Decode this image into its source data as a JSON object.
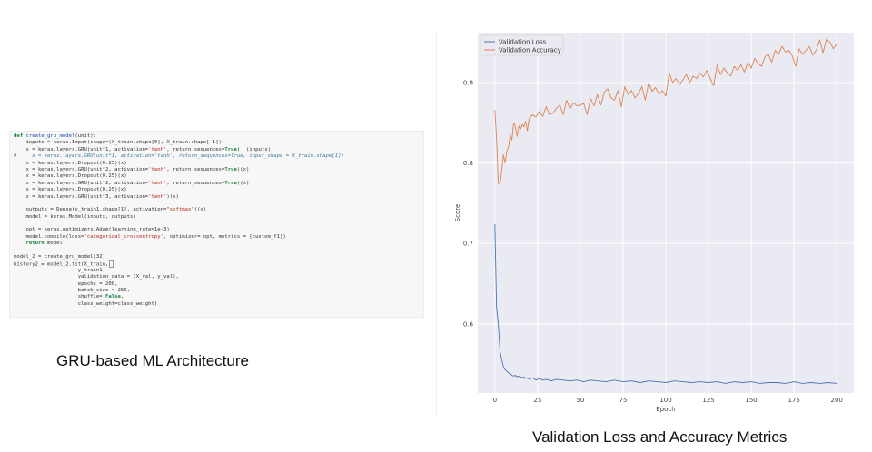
{
  "code_lines": [
    [
      [
        "kw",
        "def "
      ],
      [
        "fn",
        "create_gru_model"
      ],
      [
        "",
        "(unit):"
      ]
    ],
    [
      [
        "",
        "    inputs = keras.Input(shape=(X_train.shape[0], X_train.shape[-1]))"
      ]
    ],
    [
      [
        "",
        "    x = keras.layers.GRU(unit*1, activation="
      ],
      [
        "str",
        "'tanh'"
      ],
      [
        "",
        ", return_sequences="
      ],
      [
        "kw",
        "True"
      ],
      [
        "",
        ")  (inputs)"
      ]
    ],
    [
      [
        "cm",
        "#     x = keras.layers.GRU(unit*1, activation='tanh', return_sequences=True, input_shape = X_train.shape[1])"
      ]
    ],
    [
      [
        "",
        "    x = keras.layers.Dropout(0.25)(x)"
      ]
    ],
    [
      [
        "",
        "    x = keras.layers.GRU(unit*2, activation="
      ],
      [
        "str",
        "'tanh'"
      ],
      [
        "",
        ", return_sequences="
      ],
      [
        "kw",
        "True"
      ],
      [
        "",
        ")(x)"
      ]
    ],
    [
      [
        "",
        "    x = keras.layers.Dropout(0.25)(x)"
      ]
    ],
    [
      [
        "",
        "    x = keras.layers.GRU(unit*2, activation="
      ],
      [
        "str",
        "'tanh'"
      ],
      [
        "",
        ", return_sequences="
      ],
      [
        "kw",
        "True"
      ],
      [
        "",
        ")(x)"
      ]
    ],
    [
      [
        "",
        "    x = keras.layers.Dropout(0.25)(x)"
      ]
    ],
    [
      [
        "",
        "    x = keras.layers.GRU(unit*3, activation="
      ],
      [
        "str",
        "'tanh'"
      ],
      [
        "",
        ")(x)"
      ]
    ],
    [
      [
        "",
        ""
      ]
    ],
    [
      [
        "",
        "    outputs = Dense(y_train1.shape[1], activation="
      ],
      [
        "str",
        "\"softmax\""
      ],
      [
        "",
        ")(x)"
      ]
    ],
    [
      [
        "",
        "    model = keras.Model(inputs, outputs)"
      ]
    ],
    [
      [
        "",
        ""
      ]
    ],
    [
      [
        "",
        "    opt = keras.optimizers.Adam(learning_rate=1e-3)"
      ]
    ],
    [
      [
        "",
        "    model.compile(loss="
      ],
      [
        "str",
        "'categorical_crossentropy'"
      ],
      [
        "",
        ", optimizer= opt, metrics = [custom_f1])"
      ]
    ],
    [
      [
        "kw",
        "    return "
      ],
      [
        "",
        "model"
      ]
    ],
    [
      [
        "",
        ""
      ]
    ],
    [
      [
        "",
        "model_2 = create_gru_model(32)"
      ]
    ],
    [
      [
        "",
        "history2 = model_2.fit(X_train,"
      ]
    ],
    [
      [
        "",
        "                     y_train1,"
      ]
    ],
    [
      [
        "",
        "                     validation_data = (X_val, y_val),"
      ]
    ],
    [
      [
        "",
        "                     epochs = 200,"
      ]
    ],
    [
      [
        "",
        "                     batch_size = 256,"
      ]
    ],
    [
      [
        "",
        "                     shuffle= "
      ],
      [
        "kw",
        "False"
      ],
      [
        "",
        ","
      ]
    ],
    [
      [
        "",
        "                     class_weight=class_weight)"
      ]
    ]
  ],
  "captions": {
    "left": "GRU-based ML Architecture",
    "right": "Validation Loss and Accuracy Metrics"
  },
  "chart_data": {
    "type": "line",
    "title": "",
    "xlabel": "Epoch",
    "ylabel": "Score",
    "xlim": [
      -10,
      210
    ],
    "ylim": [
      0.514,
      0.962
    ],
    "xticks": [
      0,
      25,
      50,
      75,
      100,
      125,
      150,
      175,
      200
    ],
    "yticks": [
      0.6,
      0.7,
      0.8,
      0.9
    ],
    "ytick_labels": [
      "0.6",
      "0.7",
      "0.8",
      "0.9"
    ],
    "grid": true,
    "legend_position": "upper-left",
    "background_color": "#eaeaf2",
    "series": [
      {
        "name": "Validation Loss",
        "color": "#4c72b0",
        "x": [
          0,
          1,
          2,
          3,
          4,
          5,
          6,
          7,
          8,
          9,
          10,
          11,
          12,
          13,
          14,
          15,
          16,
          17,
          18,
          19,
          20,
          22,
          24,
          26,
          28,
          30,
          33,
          36,
          40,
          44,
          48,
          52,
          56,
          60,
          65,
          70,
          75,
          80,
          85,
          90,
          95,
          100,
          105,
          110,
          115,
          120,
          125,
          130,
          135,
          140,
          145,
          150,
          155,
          160,
          165,
          170,
          175,
          180,
          185,
          190,
          195,
          200
        ],
        "values": [
          0.724,
          0.62,
          0.6,
          0.566,
          0.556,
          0.547,
          0.543,
          0.541,
          0.539,
          0.538,
          0.536,
          0.535,
          0.536,
          0.534,
          0.535,
          0.534,
          0.533,
          0.534,
          0.532,
          0.533,
          0.531,
          0.533,
          0.53,
          0.532,
          0.53,
          0.531,
          0.529,
          0.531,
          0.53,
          0.529,
          0.53,
          0.528,
          0.53,
          0.529,
          0.528,
          0.53,
          0.528,
          0.529,
          0.527,
          0.529,
          0.528,
          0.527,
          0.529,
          0.528,
          0.527,
          0.528,
          0.527,
          0.528,
          0.526,
          0.528,
          0.527,
          0.528,
          0.526,
          0.527,
          0.527,
          0.526,
          0.528,
          0.526,
          0.527,
          0.526,
          0.527,
          0.526
        ]
      },
      {
        "name": "Validation Accuracy",
        "color": "#dd8452",
        "x": [
          0,
          1,
          2,
          3,
          4,
          5,
          6,
          7,
          8,
          9,
          10,
          11,
          12,
          13,
          14,
          15,
          16,
          17,
          18,
          19,
          20,
          22,
          24,
          26,
          28,
          30,
          32,
          34,
          36,
          38,
          40,
          42,
          44,
          46,
          48,
          50,
          52,
          54,
          56,
          58,
          60,
          62,
          64,
          66,
          68,
          70,
          72,
          74,
          76,
          78,
          80,
          82,
          84,
          86,
          88,
          90,
          92,
          94,
          96,
          98,
          100,
          102,
          104,
          106,
          108,
          110,
          112,
          114,
          116,
          118,
          120,
          122,
          124,
          126,
          128,
          130,
          132,
          134,
          136,
          138,
          140,
          142,
          144,
          146,
          148,
          150,
          152,
          154,
          156,
          158,
          160,
          162,
          164,
          166,
          168,
          170,
          172,
          174,
          176,
          178,
          180,
          182,
          184,
          186,
          188,
          190,
          192,
          194,
          196,
          198,
          200
        ],
        "values": [
          0.866,
          0.83,
          0.775,
          0.774,
          0.79,
          0.81,
          0.8,
          0.815,
          0.82,
          0.835,
          0.828,
          0.85,
          0.845,
          0.833,
          0.846,
          0.842,
          0.848,
          0.845,
          0.852,
          0.84,
          0.855,
          0.86,
          0.857,
          0.864,
          0.858,
          0.87,
          0.86,
          0.862,
          0.868,
          0.872,
          0.86,
          0.878,
          0.867,
          0.875,
          0.871,
          0.872,
          0.874,
          0.86,
          0.88,
          0.871,
          0.885,
          0.872,
          0.888,
          0.892,
          0.881,
          0.878,
          0.89,
          0.87,
          0.895,
          0.885,
          0.89,
          0.881,
          0.886,
          0.895,
          0.878,
          0.9,
          0.889,
          0.894,
          0.885,
          0.89,
          0.883,
          0.912,
          0.9,
          0.905,
          0.898,
          0.903,
          0.91,
          0.9,
          0.908,
          0.905,
          0.912,
          0.907,
          0.915,
          0.905,
          0.896,
          0.922,
          0.91,
          0.918,
          0.912,
          0.908,
          0.92,
          0.915,
          0.922,
          0.913,
          0.925,
          0.918,
          0.93,
          0.924,
          0.92,
          0.932,
          0.935,
          0.925,
          0.94,
          0.935,
          0.945,
          0.938,
          0.94,
          0.933,
          0.92,
          0.942,
          0.935,
          0.94,
          0.945,
          0.934,
          0.94,
          0.953,
          0.937,
          0.954,
          0.95,
          0.942,
          0.948
        ]
      }
    ]
  }
}
